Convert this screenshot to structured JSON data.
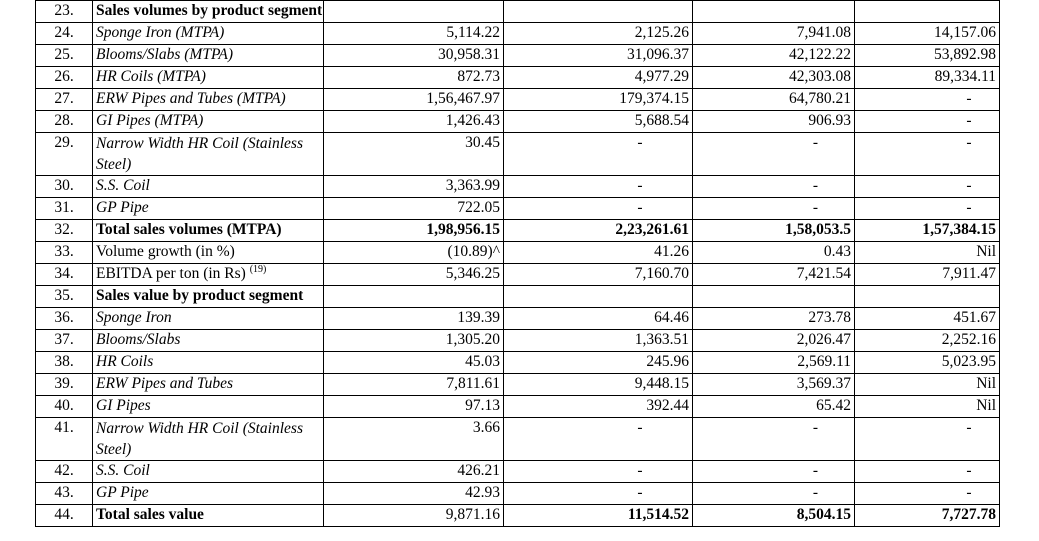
{
  "rows": [
    {
      "n": "23.",
      "label": "Sales volumes by product segment (MTPA)*",
      "style": "b",
      "cols": [
        "",
        "",
        "",
        ""
      ]
    },
    {
      "n": "24.",
      "label": "Sponge Iron (MTPA)",
      "style": "it",
      "cols": [
        "5,114.22",
        "2,125.26",
        "7,941.08",
        "14,157.06"
      ]
    },
    {
      "n": "25.",
      "label": "Blooms/Slabs (MTPA)",
      "style": "it",
      "cols": [
        "30,958.31",
        "31,096.37",
        "42,122.22",
        "53,892.98"
      ]
    },
    {
      "n": "26.",
      "label": "HR Coils (MTPA)",
      "style": "it",
      "cols": [
        "872.73",
        "4,977.29",
        "42,303.08",
        "89,334.11"
      ]
    },
    {
      "n": "27.",
      "label": "ERW Pipes and Tubes (MTPA)",
      "style": "it",
      "cols": [
        "1,56,467.97",
        "179,374.15",
        "64,780.21",
        "-"
      ]
    },
    {
      "n": "28.",
      "label": "GI Pipes (MTPA)",
      "style": "it",
      "cols": [
        "1,426.43",
        "5,688.54",
        "906.93",
        "-"
      ]
    },
    {
      "n": "29.",
      "label": "Narrow Width HR Coil (Stainless Steel)",
      "style": "it",
      "tall": true,
      "cols": [
        "30.45",
        "-",
        "-",
        "-"
      ]
    },
    {
      "n": "30.",
      "label": "S.S. Coil",
      "style": "it",
      "cols": [
        "3,363.99",
        "-",
        "-",
        "-"
      ]
    },
    {
      "n": "31.",
      "label": "GP Pipe",
      "style": "it",
      "cols": [
        "722.05",
        "-",
        "-",
        "-"
      ]
    },
    {
      "n": "32.",
      "label": "Total sales volumes (MTPA)",
      "style": "b",
      "cols": [
        "1,98,956.15",
        "2,23,261.61",
        "1,58,053.5",
        "1,57,384.15"
      ]
    },
    {
      "n": "33.",
      "label": "Volume growth (in %)",
      "style": "",
      "cols": [
        "(10.89)^",
        "41.26",
        "0.43",
        "Nil"
      ]
    },
    {
      "n": "34.",
      "label": "EBITDA per ton (in Rs)",
      "sup": "(19)",
      "style": "",
      "cols": [
        "5,346.25",
        "7,160.70",
        "7,421.54",
        "7,911.47"
      ]
    },
    {
      "n": "35.",
      "label": "Sales value by product segment",
      "style": "b",
      "cols": [
        "",
        "",
        "",
        ""
      ]
    },
    {
      "n": "36.",
      "label": "Sponge Iron",
      "style": "it",
      "cols": [
        "139.39",
        "64.46",
        "273.78",
        "451.67"
      ]
    },
    {
      "n": "37.",
      "label": "Blooms/Slabs",
      "style": "it",
      "cols": [
        "1,305.20",
        "1,363.51",
        "2,026.47",
        "2,252.16"
      ]
    },
    {
      "n": "38.",
      "label": "HR Coils",
      "style": "it",
      "cols": [
        "45.03",
        "245.96",
        "2,569.11",
        "5,023.95"
      ]
    },
    {
      "n": "39.",
      "label": "ERW Pipes and Tubes",
      "style": "it",
      "cols": [
        "7,811.61",
        "9,448.15",
        "3,569.37",
        "Nil"
      ]
    },
    {
      "n": "40.",
      "label": "GI Pipes",
      "style": "it",
      "cols": [
        "97.13",
        "392.44",
        "65.42",
        "Nil"
      ]
    },
    {
      "n": "41.",
      "label": "Narrow Width HR Coil (Stainless Steel)",
      "style": "it",
      "tall": true,
      "cols": [
        "3.66",
        "-",
        "-",
        "-"
      ]
    },
    {
      "n": "42.",
      "label": "S.S. Coil",
      "style": "it",
      "cols": [
        "426.21",
        "-",
        "-",
        "-"
      ]
    },
    {
      "n": "43.",
      "label": "GP Pipe",
      "style": "it",
      "cols": [
        "42.93",
        "-",
        "-",
        "-"
      ]
    },
    {
      "n": "44.",
      "label": "Total sales value",
      "style": "b",
      "cols": [
        "9,871.16",
        "11,514.52",
        "8,504.15",
        "7,727.78"
      ]
    }
  ]
}
